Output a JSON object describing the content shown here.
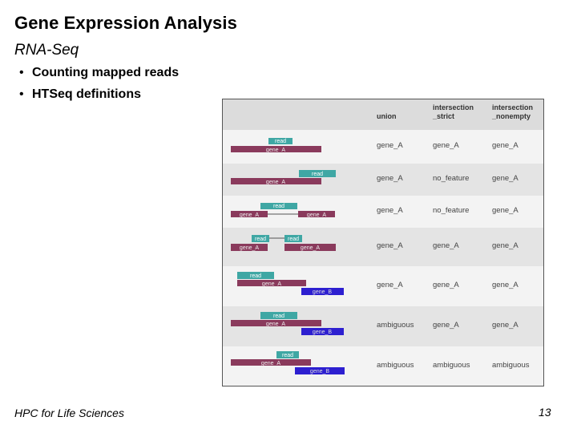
{
  "slide": {
    "title": "Gene Expression Analysis",
    "subtitle": "RNA-Seq",
    "bullets": [
      "Counting mapped reads",
      "HTSeq definitions"
    ],
    "footer_left": "HPC for Life Sciences",
    "page_number": "13"
  },
  "table": {
    "columns": [
      "union",
      "intersection_strict",
      "intersection_nonempty"
    ],
    "column_headers": [
      "union",
      "intersection\n_strict",
      "intersection\n_nonempty"
    ],
    "rows": [
      {
        "cells": [
          "gene_A",
          "gene_A",
          "gene_A"
        ],
        "labels": {
          "read": "read",
          "gene1": "gene_A"
        }
      },
      {
        "cells": [
          "gene_A",
          "no_feature",
          "gene_A"
        ],
        "labels": {
          "read": "read",
          "gene1": "gene_A"
        }
      },
      {
        "cells": [
          "gene_A",
          "no_feature",
          "gene_A"
        ],
        "labels": {
          "read": "read",
          "gene1": "gene_A",
          "gene2": "gene_A"
        }
      },
      {
        "cells": [
          "gene_A",
          "gene_A",
          "gene_A"
        ],
        "labels": {
          "read": "read",
          "read2": "read",
          "gene1": "gene_A",
          "gene2": "gene_A"
        }
      },
      {
        "cells": [
          "gene_A",
          "gene_A",
          "gene_A"
        ],
        "labels": {
          "read": "read",
          "gene1": "gene_A",
          "gene2": "gene_B"
        }
      },
      {
        "cells": [
          "ambiguous",
          "gene_A",
          "gene_A"
        ],
        "labels": {
          "read": "read",
          "gene1": "gene_A",
          "gene2": "gene_B"
        }
      },
      {
        "cells": [
          "ambiguous",
          "ambiguous",
          "ambiguous"
        ],
        "labels": {
          "read": "read",
          "gene1": "gene_A",
          "gene2": "gene_B"
        }
      }
    ]
  },
  "colors": {
    "read": "#3fa7a4",
    "gene_a": "#8a3a5c",
    "gene_b": "#2d1fd0",
    "row_light": "#f3f3f3",
    "row_dark": "#e4e4e4"
  }
}
